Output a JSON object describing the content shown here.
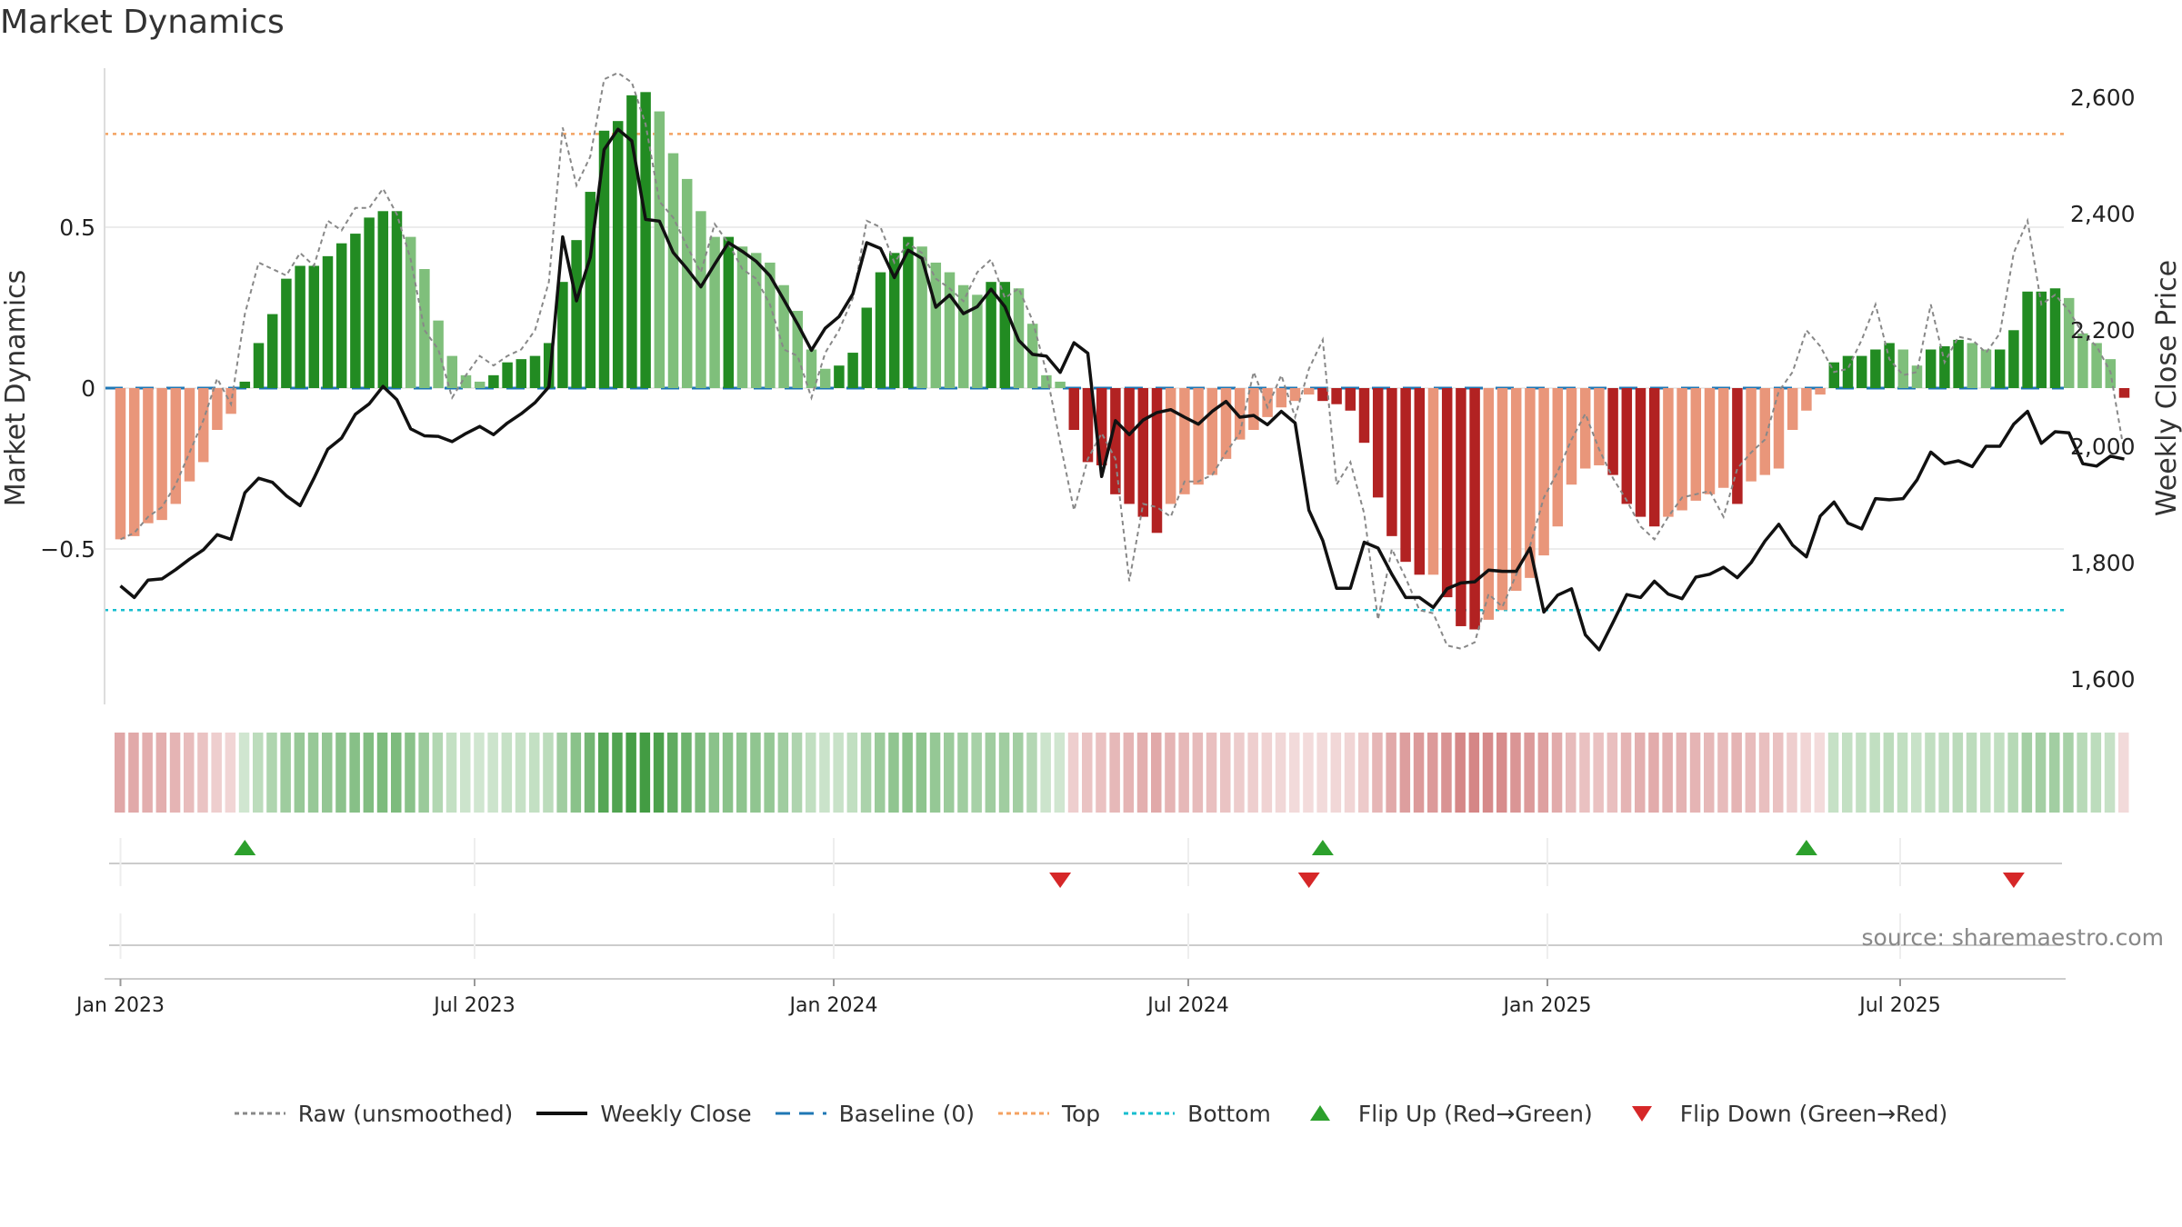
{
  "page": {
    "title": "Market Dynamics"
  },
  "source": "source: sharemaestro.com",
  "colors": {
    "dark_green": "#228b22",
    "light_green": "#7fbf7b",
    "dark_red": "#b22222",
    "light_red": "#e9967a",
    "raw": "#888888",
    "close": "#111111",
    "baseline": "#1f77b4",
    "top": "#f4a261",
    "bottom": "#17becf",
    "flip_up": "#2ca02c",
    "flip_down": "#d62728"
  },
  "chart_data": {
    "type": "bar",
    "title": "Market Dynamics",
    "ylabel_left": "Market Dynamics",
    "ylabel_right": "Weekly Close Price",
    "left_ticks": [
      "0.5",
      "0",
      "−0.5"
    ],
    "right_ticks": [
      "2,600",
      "2,400",
      "2,200",
      "2,000",
      "1,800",
      "1,600"
    ],
    "x_ticks": [
      "Jan 2023",
      "Jul 2023",
      "Jan 2024",
      "Jul 2024",
      "Jan 2025",
      "Jul 2025"
    ],
    "ylim_left": [
      -0.98,
      0.98
    ],
    "ylim_right": [
      1560,
      2640
    ],
    "x_range_weeks": [
      -1,
      139
    ],
    "start": "2023-01-02",
    "lines": {
      "top": 0.79,
      "bottom": -0.69,
      "baseline": 0
    },
    "values": [
      -0.47,
      -0.46,
      -0.42,
      -0.41,
      -0.36,
      -0.29,
      -0.23,
      -0.13,
      -0.08,
      0.02,
      0.14,
      0.23,
      0.34,
      0.38,
      0.38,
      0.41,
      0.45,
      0.48,
      0.53,
      0.55,
      0.55,
      0.47,
      0.37,
      0.21,
      0.1,
      0.04,
      0.02,
      0.04,
      0.08,
      0.09,
      0.1,
      0.14,
      0.33,
      0.46,
      0.61,
      0.8,
      0.83,
      0.91,
      0.92,
      0.86,
      0.73,
      0.65,
      0.55,
      0.47,
      0.47,
      0.44,
      0.42,
      0.39,
      0.32,
      0.24,
      0.12,
      0.06,
      0.07,
      0.11,
      0.25,
      0.36,
      0.42,
      0.47,
      0.44,
      0.39,
      0.36,
      0.32,
      0.29,
      0.33,
      0.33,
      0.31,
      0.2,
      0.04,
      0.02,
      -0.13,
      -0.23,
      -0.24,
      -0.33,
      -0.36,
      -0.4,
      -0.45,
      -0.36,
      -0.33,
      -0.3,
      -0.27,
      -0.22,
      -0.16,
      -0.13,
      -0.09,
      -0.06,
      -0.04,
      -0.02,
      -0.04,
      -0.05,
      -0.07,
      -0.17,
      -0.34,
      -0.46,
      -0.54,
      -0.58,
      -0.58,
      -0.65,
      -0.74,
      -0.75,
      -0.72,
      -0.69,
      -0.63,
      -0.59,
      -0.52,
      -0.43,
      -0.3,
      -0.25,
      -0.24,
      -0.27,
      -0.36,
      -0.4,
      -0.43,
      -0.4,
      -0.38,
      -0.35,
      -0.33,
      -0.31,
      -0.36,
      -0.29,
      -0.27,
      -0.25,
      -0.13,
      -0.07,
      -0.02,
      0.08,
      0.1,
      0.1,
      0.12,
      0.14,
      0.12,
      0.07,
      0.12,
      0.13,
      0.15,
      0.14,
      0.12,
      0.12,
      0.18,
      0.3,
      0.3,
      0.31,
      0.28,
      0.17,
      0.14,
      0.09,
      -0.03
    ],
    "raw": [
      -0.47,
      -0.45,
      -0.4,
      -0.37,
      -0.3,
      -0.2,
      -0.1,
      0.03,
      -0.05,
      0.23,
      0.39,
      0.37,
      0.35,
      0.42,
      0.38,
      0.52,
      0.49,
      0.56,
      0.56,
      0.62,
      0.54,
      0.4,
      0.18,
      0.12,
      -0.03,
      0.04,
      0.1,
      0.07,
      0.1,
      0.12,
      0.18,
      0.33,
      0.81,
      0.63,
      0.72,
      0.96,
      0.98,
      0.95,
      0.82,
      0.58,
      0.53,
      0.44,
      0.36,
      0.51,
      0.45,
      0.37,
      0.34,
      0.26,
      0.12,
      0.1,
      -0.03,
      0.11,
      0.18,
      0.28,
      0.52,
      0.5,
      0.39,
      0.45,
      0.42,
      0.34,
      0.31,
      0.27,
      0.36,
      0.4,
      0.28,
      0.31,
      0.21,
      0.05,
      -0.17,
      -0.38,
      -0.22,
      -0.14,
      -0.22,
      -0.6,
      -0.36,
      -0.37,
      -0.4,
      -0.29,
      -0.29,
      -0.27,
      -0.2,
      -0.14,
      0.05,
      -0.06,
      0.04,
      -0.09,
      0.06,
      0.15,
      -0.3,
      -0.23,
      -0.39,
      -0.72,
      -0.5,
      -0.59,
      -0.69,
      -0.7,
      -0.8,
      -0.81,
      -0.79,
      -0.64,
      -0.68,
      -0.58,
      -0.49,
      -0.34,
      -0.26,
      -0.16,
      -0.08,
      -0.19,
      -0.28,
      -0.35,
      -0.43,
      -0.47,
      -0.4,
      -0.34,
      -0.33,
      -0.32,
      -0.4,
      -0.25,
      -0.2,
      -0.16,
      -0.01,
      0.05,
      0.18,
      0.13,
      0.05,
      0.06,
      0.15,
      0.26,
      0.09,
      0.04,
      0.05,
      0.26,
      0.08,
      0.16,
      0.15,
      0.11,
      0.17,
      0.42,
      0.52,
      0.26,
      0.29,
      0.24,
      0.17,
      0.13,
      0.05,
      -0.2
    ],
    "close": [
      1760,
      1740,
      1770,
      1772,
      1788,
      1806,
      1822,
      1848,
      1840,
      1920,
      1945,
      1938,
      1915,
      1898,
      1945,
      1995,
      2014,
      2055,
      2073,
      2103,
      2080,
      2030,
      2018,
      2017,
      2008,
      2022,
      2034,
      2020,
      2040,
      2056,
      2075,
      2102,
      2360,
      2250,
      2325,
      2510,
      2545,
      2525,
      2390,
      2387,
      2333,
      2305,
      2274,
      2313,
      2350,
      2335,
      2318,
      2293,
      2252,
      2210,
      2165,
      2203,
      2223,
      2262,
      2350,
      2340,
      2290,
      2337,
      2323,
      2239,
      2260,
      2228,
      2240,
      2270,
      2240,
      2182,
      2158,
      2155,
      2127,
      2178,
      2160,
      1948,
      2044,
      2020,
      2045,
      2058,
      2063,
      2050,
      2038,
      2060,
      2077,
      2050,
      2053,
      2037,
      2060,
      2040,
      1890,
      1838,
      1756,
      1756,
      1835,
      1825,
      1780,
      1740,
      1740,
      1723,
      1755,
      1765,
      1767,
      1787,
      1785,
      1785,
      1825,
      1715,
      1744,
      1755,
      1676,
      1650,
      1697,
      1745,
      1740,
      1768,
      1746,
      1738,
      1775,
      1780,
      1792,
      1774,
      1800,
      1837,
      1866,
      1830,
      1810,
      1880,
      1904,
      1868,
      1858,
      1910,
      1908,
      1910,
      1942,
      1990,
      1970,
      1975,
      1965,
      2000,
      2000,
      2038,
      2060,
      2005,
      2025,
      2023,
      1970,
      1966,
      1983,
      1978
    ],
    "color_strip_intensity": "per-week shade of bar value (green positive, red negative)",
    "flips": {
      "up_weeks": [
        9,
        87,
        122
      ],
      "down_weeks": [
        68,
        86,
        137
      ]
    },
    "legend": [
      {
        "label": "Raw (unsmoothed)",
        "kind": "dotted",
        "color": "#888888"
      },
      {
        "label": "Weekly Close",
        "kind": "solid",
        "color": "#111111"
      },
      {
        "label": "Baseline (0)",
        "kind": "dashed",
        "color": "#1f77b4"
      },
      {
        "label": "Top",
        "kind": "dotted",
        "color": "#f4a261"
      },
      {
        "label": "Bottom",
        "kind": "dotted",
        "color": "#17becf"
      },
      {
        "label": "Flip Up (Red→Green)",
        "kind": "triangle-up",
        "color": "#2ca02c"
      },
      {
        "label": "Flip Down (Green→Red)",
        "kind": "triangle-down",
        "color": "#d62728"
      }
    ]
  }
}
